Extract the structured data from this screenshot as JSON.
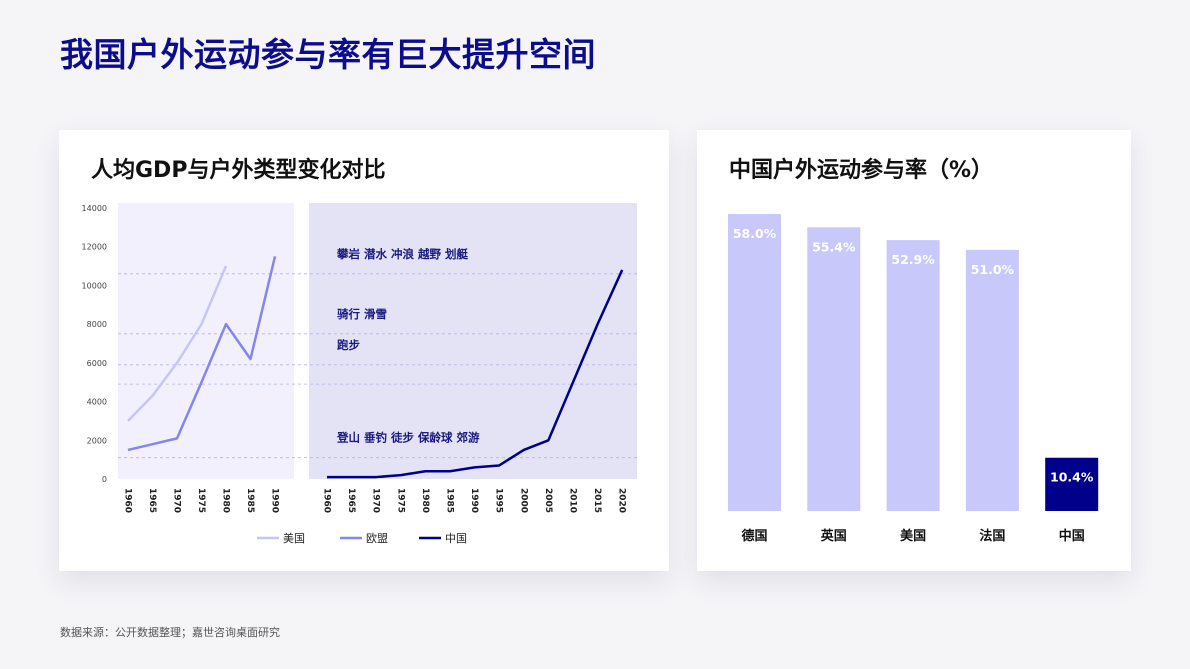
{
  "page": {
    "title": "我国户外运动参与率有巨大提升空间",
    "source_note": "数据来源：公开数据整理；嘉世咨询桌面研究"
  },
  "colors": {
    "title": "#0c0c8c",
    "usa": "#c6c6f2",
    "eu": "#8585ec",
    "china": "#00008b",
    "panel_left": "#f1f0fc",
    "panel_right": "#e4e3f5",
    "bar": "#c9c8fb",
    "bar_highlight": "#00008b"
  },
  "chart_data": [
    {
      "type": "line",
      "title": "人均GDP与户外类型变化对比",
      "ylim": [
        0,
        14000
      ],
      "yticks": [
        0,
        2000,
        4000,
        6000,
        8000,
        10000,
        12000,
        14000
      ],
      "panels": [
        {
          "x": [
            "1960",
            "1965",
            "1970",
            "1975",
            "1980",
            "1985",
            "1990"
          ]
        },
        {
          "x": [
            "1960",
            "1965",
            "1970",
            "1975",
            "1980",
            "1985",
            "1990",
            "1995",
            "2000",
            "2005",
            "2010",
            "2015",
            "2020"
          ]
        }
      ],
      "series": [
        {
          "name": "美国",
          "panel": 0,
          "x": [
            "1960",
            "1965",
            "1970",
            "1975",
            "1980"
          ],
          "values": [
            3000,
            4300,
            6000,
            8000,
            11000
          ]
        },
        {
          "name": "欧盟",
          "panel": 0,
          "x": [
            "1960",
            "1965",
            "1970",
            "1975",
            "1980",
            "1985",
            "1990"
          ],
          "values": [
            1500,
            1800,
            2100,
            5000,
            8000,
            6200,
            11500
          ]
        },
        {
          "name": "中国",
          "panel": 1,
          "x": [
            "1960",
            "1965",
            "1970",
            "1975",
            "1980",
            "1985",
            "1990",
            "1995",
            "2000",
            "2005",
            "2010",
            "2015",
            "2020"
          ],
          "values": [
            100,
            100,
            100,
            200,
            400,
            400,
            600,
            700,
            1500,
            2000,
            5000,
            8000,
            10800
          ]
        }
      ],
      "annotations": [
        {
          "text": "攀岩 潜水 冲浪 越野 划艇",
          "y": 10600
        },
        {
          "text": "骑行  滑雪",
          "y": 7500
        },
        {
          "text": "跑步",
          "y": 5900
        },
        {
          "text": "登山 垂钓 徒步 保龄球 郊游",
          "y": 1100
        }
      ],
      "threshold_lines": [
        10600,
        7500,
        5900,
        4900,
        1100
      ],
      "legend": "bottom"
    },
    {
      "type": "bar",
      "title": "中国户外运动参与率（%）",
      "categories": [
        "德国",
        "英国",
        "美国",
        "法国",
        "中国"
      ],
      "values": [
        58.0,
        55.4,
        52.9,
        51.0,
        10.4
      ],
      "labels": [
        "58.0%",
        "55.4%",
        "52.9%",
        "51.0%",
        "10.4%"
      ],
      "highlight": "中国"
    }
  ]
}
